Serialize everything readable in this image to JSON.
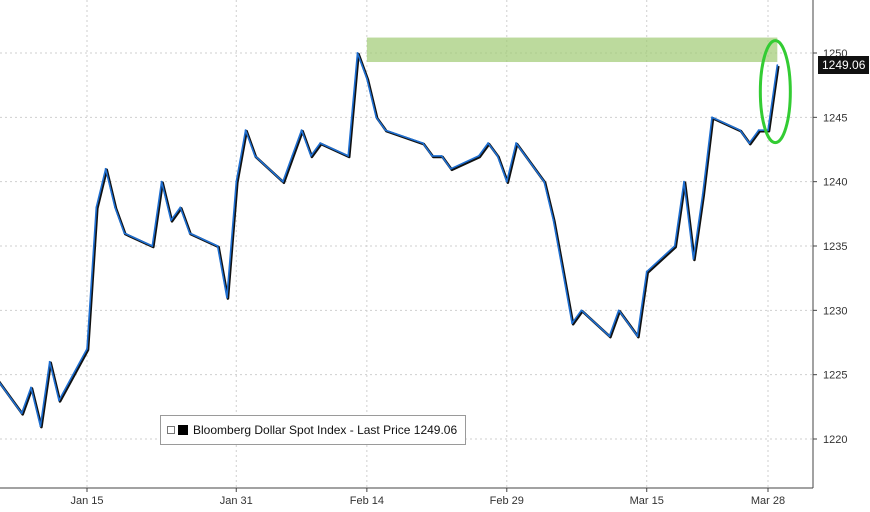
{
  "chart_data": {
    "type": "line",
    "title": "",
    "xlabel": "",
    "ylabel": "",
    "x_ticks": [
      "Jan 15",
      "Jan 31",
      "Feb 14",
      "Feb 29",
      "Mar 15",
      "Mar 28"
    ],
    "y_ticks": [
      1220,
      1225,
      1230,
      1235,
      1240,
      1245,
      1250
    ],
    "ylim": [
      1217,
      1254
    ],
    "y_axis_position": "right",
    "grid": "horizontal-dashed",
    "legend": {
      "placement": "bottom-left",
      "label": "Bloomberg Dollar Spot Index - Last Price 1249.06"
    },
    "last_price_label": "1249.06",
    "series": [
      {
        "name": "Bloomberg Dollar Spot Index",
        "x": [
          "Jan 5",
          "Jan 8",
          "Jan 9",
          "Jan 10",
          "Jan 11",
          "Jan 12",
          "Jan 15",
          "Jan 16",
          "Jan 17",
          "Jan 18",
          "Jan 19",
          "Jan 22",
          "Jan 23",
          "Jan 24",
          "Jan 25",
          "Jan 26",
          "Jan 29",
          "Jan 30",
          "Jan 31",
          "Feb 1",
          "Feb 2",
          "Feb 5",
          "Feb 6",
          "Feb 7",
          "Feb 8",
          "Feb 9",
          "Feb 12",
          "Feb 13",
          "Feb 14",
          "Feb 15",
          "Feb 16",
          "Feb 20",
          "Feb 21",
          "Feb 22",
          "Feb 23",
          "Feb 26",
          "Feb 27",
          "Feb 28",
          "Feb 29",
          "Mar 1",
          "Mar 4",
          "Mar 5",
          "Mar 6",
          "Mar 7",
          "Mar 8",
          "Mar 11",
          "Mar 12",
          "Mar 13",
          "Mar 14",
          "Mar 15",
          "Mar 18",
          "Mar 19",
          "Mar 20",
          "Mar 21",
          "Mar 22",
          "Mar 25",
          "Mar 26",
          "Mar 27",
          "Mar 28",
          "Mar 29"
        ],
        "values": [
          1225,
          1222,
          1224,
          1221,
          1226,
          1223,
          1227,
          1238,
          1241,
          1238,
          1236,
          1235,
          1240,
          1237,
          1238,
          1236,
          1235,
          1231,
          1240,
          1244,
          1242,
          1240,
          1242,
          1244,
          1242,
          1243,
          1242,
          1250,
          1248,
          1245,
          1244,
          1243,
          1242,
          1242,
          1241,
          1242,
          1243,
          1242,
          1240,
          1243,
          1240,
          1237,
          1233,
          1229,
          1230,
          1228,
          1230,
          1229,
          1228,
          1233,
          1235,
          1240,
          1234,
          1239,
          1245,
          1244,
          1243,
          1244,
          1244,
          1249.06
        ]
      }
    ],
    "annotations": [
      {
        "type": "highlight-band",
        "y_range": [
          1249.3,
          1251.2
        ],
        "x_range": [
          "Feb 14",
          "Mar 29"
        ],
        "color": "#9fcb73"
      },
      {
        "type": "ellipse",
        "x": "Mar 29",
        "y": 1247,
        "color": "#33cc33"
      }
    ],
    "colors": {
      "line": "#1f6fd1",
      "line_shadow": "#111111",
      "grid": "#cfcfcf"
    }
  }
}
